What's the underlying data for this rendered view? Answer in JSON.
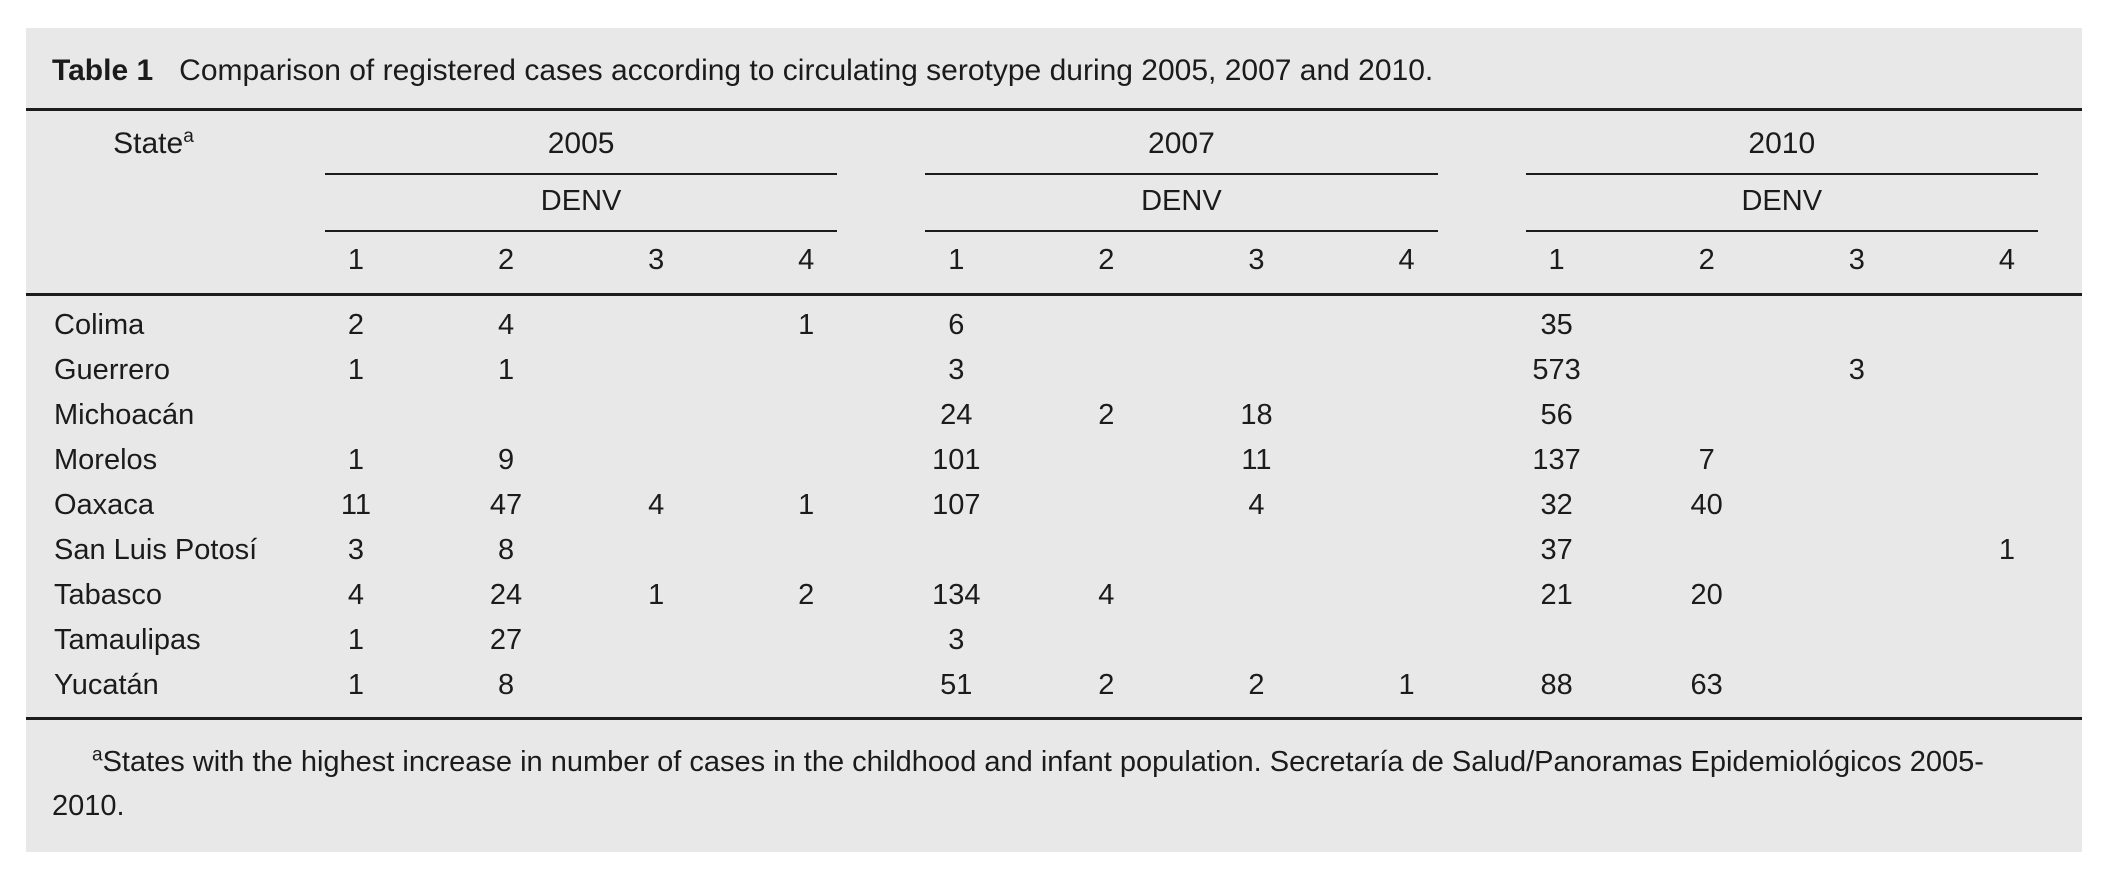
{
  "caption": {
    "label": "Table 1",
    "text": "Comparison of registered cases according to circulating serotype during 2005, 2007 and 2010."
  },
  "header": {
    "state_label": "State",
    "state_sup": "a",
    "year_groups": [
      {
        "year": "2005",
        "subheader": "DENV",
        "serotypes": [
          "1",
          "2",
          "3",
          "4"
        ]
      },
      {
        "year": "2007",
        "subheader": "DENV",
        "serotypes": [
          "1",
          "2",
          "3",
          "4"
        ]
      },
      {
        "year": "2010",
        "subheader": "DENV",
        "serotypes": [
          "1",
          "2",
          "3",
          "4"
        ]
      }
    ]
  },
  "rows": [
    {
      "state": "Colima",
      "values": [
        "2",
        "4",
        "",
        "1",
        "6",
        "",
        "",
        "",
        "35",
        "",
        "",
        ""
      ]
    },
    {
      "state": "Guerrero",
      "values": [
        "1",
        "1",
        "",
        "",
        "3",
        "",
        "",
        "",
        "573",
        "",
        "3",
        ""
      ]
    },
    {
      "state": "Michoacán",
      "values": [
        "",
        "",
        "",
        "",
        "24",
        "2",
        "18",
        "",
        "56",
        "",
        "",
        ""
      ]
    },
    {
      "state": "Morelos",
      "values": [
        "1",
        "9",
        "",
        "",
        "101",
        "",
        "11",
        "",
        "137",
        "7",
        "",
        ""
      ]
    },
    {
      "state": "Oaxaca",
      "values": [
        "11",
        "47",
        "4",
        "1",
        "107",
        "",
        "4",
        "",
        "32",
        "40",
        "",
        ""
      ]
    },
    {
      "state": "San Luis Potosí",
      "values": [
        "3",
        "8",
        "",
        "",
        "",
        "",
        "",
        "",
        "37",
        "",
        "",
        "1"
      ]
    },
    {
      "state": "Tabasco",
      "values": [
        "4",
        "24",
        "1",
        "2",
        "134",
        "4",
        "",
        "",
        "21",
        "20",
        "",
        ""
      ]
    },
    {
      "state": "Tamaulipas",
      "values": [
        "1",
        "27",
        "",
        "",
        "3",
        "",
        "",
        "",
        "",
        "",
        "",
        ""
      ]
    },
    {
      "state": "Yucatán",
      "values": [
        "1",
        "8",
        "",
        "",
        "51",
        "2",
        "2",
        "1",
        "88",
        "63",
        "",
        ""
      ]
    }
  ],
  "footnote": {
    "sup": "a",
    "text": "States with the highest increase in number of cases in the childhood and infant population. Secretaría de Salud/Panoramas Epidemiológicos 2005-2010."
  },
  "colors": {
    "panel_background": "#e8e8e8",
    "text": "#1b1b1b",
    "rule": "#1c1c1c"
  }
}
